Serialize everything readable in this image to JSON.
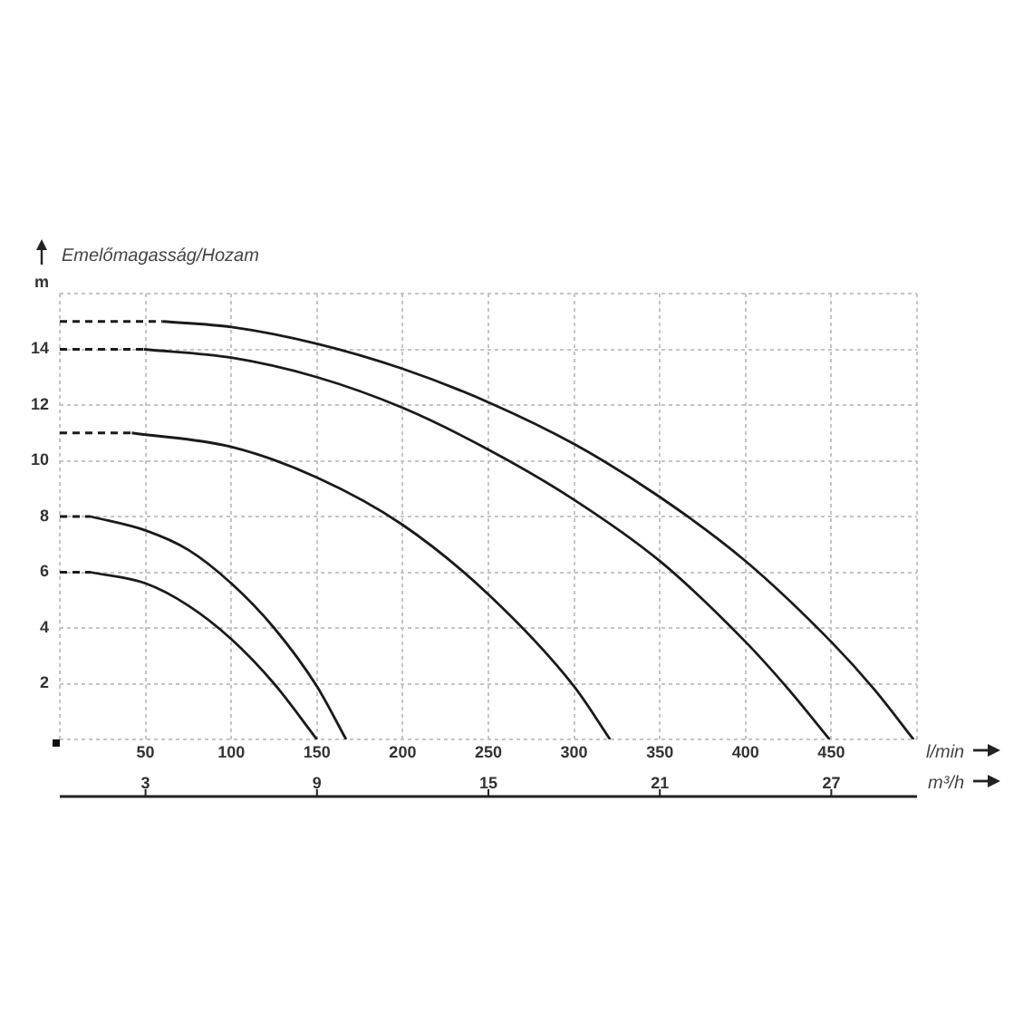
{
  "chart_data": {
    "type": "line",
    "title": "Emelőmagasság/Hozam",
    "ylabel": "m",
    "xlabel": "l/min",
    "x2label": "m³/h",
    "xlim": [
      0,
      500
    ],
    "xticks": [
      {
        "value": 0,
        "label": null
      },
      50,
      100,
      150,
      200,
      250,
      300,
      350,
      400,
      450,
      {
        "value": 500,
        "label": null
      }
    ],
    "x2lim": [
      0,
      30
    ],
    "x2ticks": [
      3,
      9,
      15,
      21,
      27
    ],
    "ylim": [
      0,
      16
    ],
    "yticks": [
      {
        "value": 0,
        "label": null
      },
      2,
      4,
      6,
      8,
      10,
      12,
      14,
      {
        "value": 16,
        "label": null
      }
    ],
    "grid": true,
    "series": [
      {
        "color": "#1a1a1a",
        "line_style": "dashed",
        "x": [
          0,
          60
        ],
        "values": [
          15,
          15
        ]
      },
      {
        "color": "#1a1a1a",
        "line_style": "solid",
        "x": [
          60,
          100,
          150,
          200,
          250,
          300,
          350,
          400,
          450,
          475,
          498
        ],
        "values": [
          15,
          14.8,
          14.2,
          13.3,
          12.1,
          10.6,
          8.7,
          6.4,
          3.5,
          1.8,
          0
        ]
      },
      {
        "color": "#1a1a1a",
        "line_style": "dashed",
        "x": [
          0,
          49
        ],
        "values": [
          14,
          14
        ]
      },
      {
        "color": "#1a1a1a",
        "line_style": "solid",
        "x": [
          49,
          100,
          150,
          200,
          250,
          300,
          350,
          400,
          425,
          449
        ],
        "values": [
          14,
          13.7,
          13.0,
          11.9,
          10.4,
          8.6,
          6.4,
          3.5,
          1.8,
          0
        ]
      },
      {
        "color": "#1a1a1a",
        "line_style": "dashed",
        "x": [
          0,
          42
        ],
        "values": [
          11,
          11
        ]
      },
      {
        "color": "#1a1a1a",
        "line_style": "solid",
        "x": [
          42,
          100,
          150,
          200,
          250,
          300,
          321
        ],
        "values": [
          11,
          10.5,
          9.4,
          7.7,
          5.2,
          1.9,
          0
        ]
      },
      {
        "color": "#1a1a1a",
        "line_style": "dashed",
        "x": [
          0,
          18
        ],
        "values": [
          8,
          8
        ]
      },
      {
        "color": "#1a1a1a",
        "line_style": "solid",
        "x": [
          18,
          50,
          75,
          100,
          125,
          150,
          167
        ],
        "values": [
          8,
          7.5,
          6.8,
          5.6,
          4.0,
          1.9,
          0
        ]
      },
      {
        "color": "#1a1a1a",
        "line_style": "dashed",
        "x": [
          0,
          18
        ],
        "values": [
          6,
          6
        ]
      },
      {
        "color": "#1a1a1a",
        "line_style": "solid",
        "x": [
          18,
          50,
          75,
          100,
          125,
          150
        ],
        "values": [
          6,
          5.6,
          4.8,
          3.6,
          2.0,
          0
        ]
      }
    ]
  }
}
